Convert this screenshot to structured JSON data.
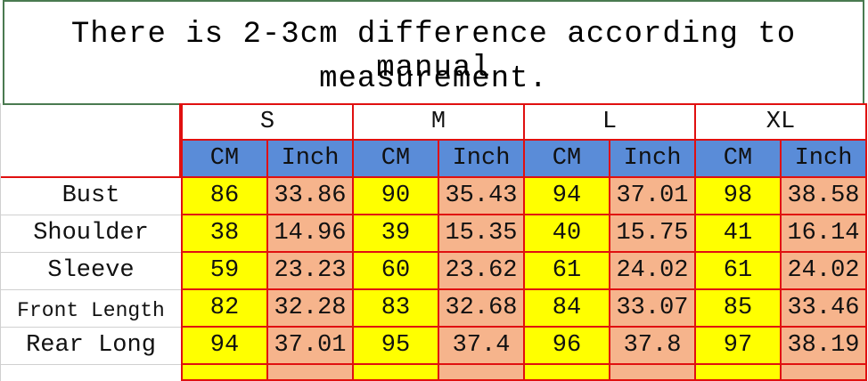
{
  "header": {
    "note_lines": [
      "There is 2-3cm difference according to manual",
      "measurement."
    ]
  },
  "table": {
    "sizes": [
      "S",
      "M",
      "L",
      "XL"
    ],
    "units": [
      "CM",
      "Inch",
      "CM",
      "Inch",
      "CM",
      "Inch",
      "CM",
      "Inch"
    ],
    "rows": [
      [
        "Bust",
        "86",
        "33.86",
        "90",
        "35.43",
        "94",
        "37.01",
        "98",
        "38.58"
      ],
      [
        "Shoulder",
        "38",
        "14.96",
        "39",
        "15.35",
        "40",
        "15.75",
        "41",
        "16.14"
      ],
      [
        "Sleeve",
        "59",
        "23.23",
        "60",
        "23.62",
        "61",
        "24.02",
        "61",
        "24.02"
      ],
      [
        "Front Length",
        "82",
        "32.28",
        "83",
        "32.68",
        "84",
        "33.07",
        "85",
        "33.46"
      ],
      [
        "Rear Long",
        "94",
        "37.01",
        "95",
        "37.4",
        "96",
        "37.8",
        "97",
        "38.19"
      ]
    ]
  }
}
